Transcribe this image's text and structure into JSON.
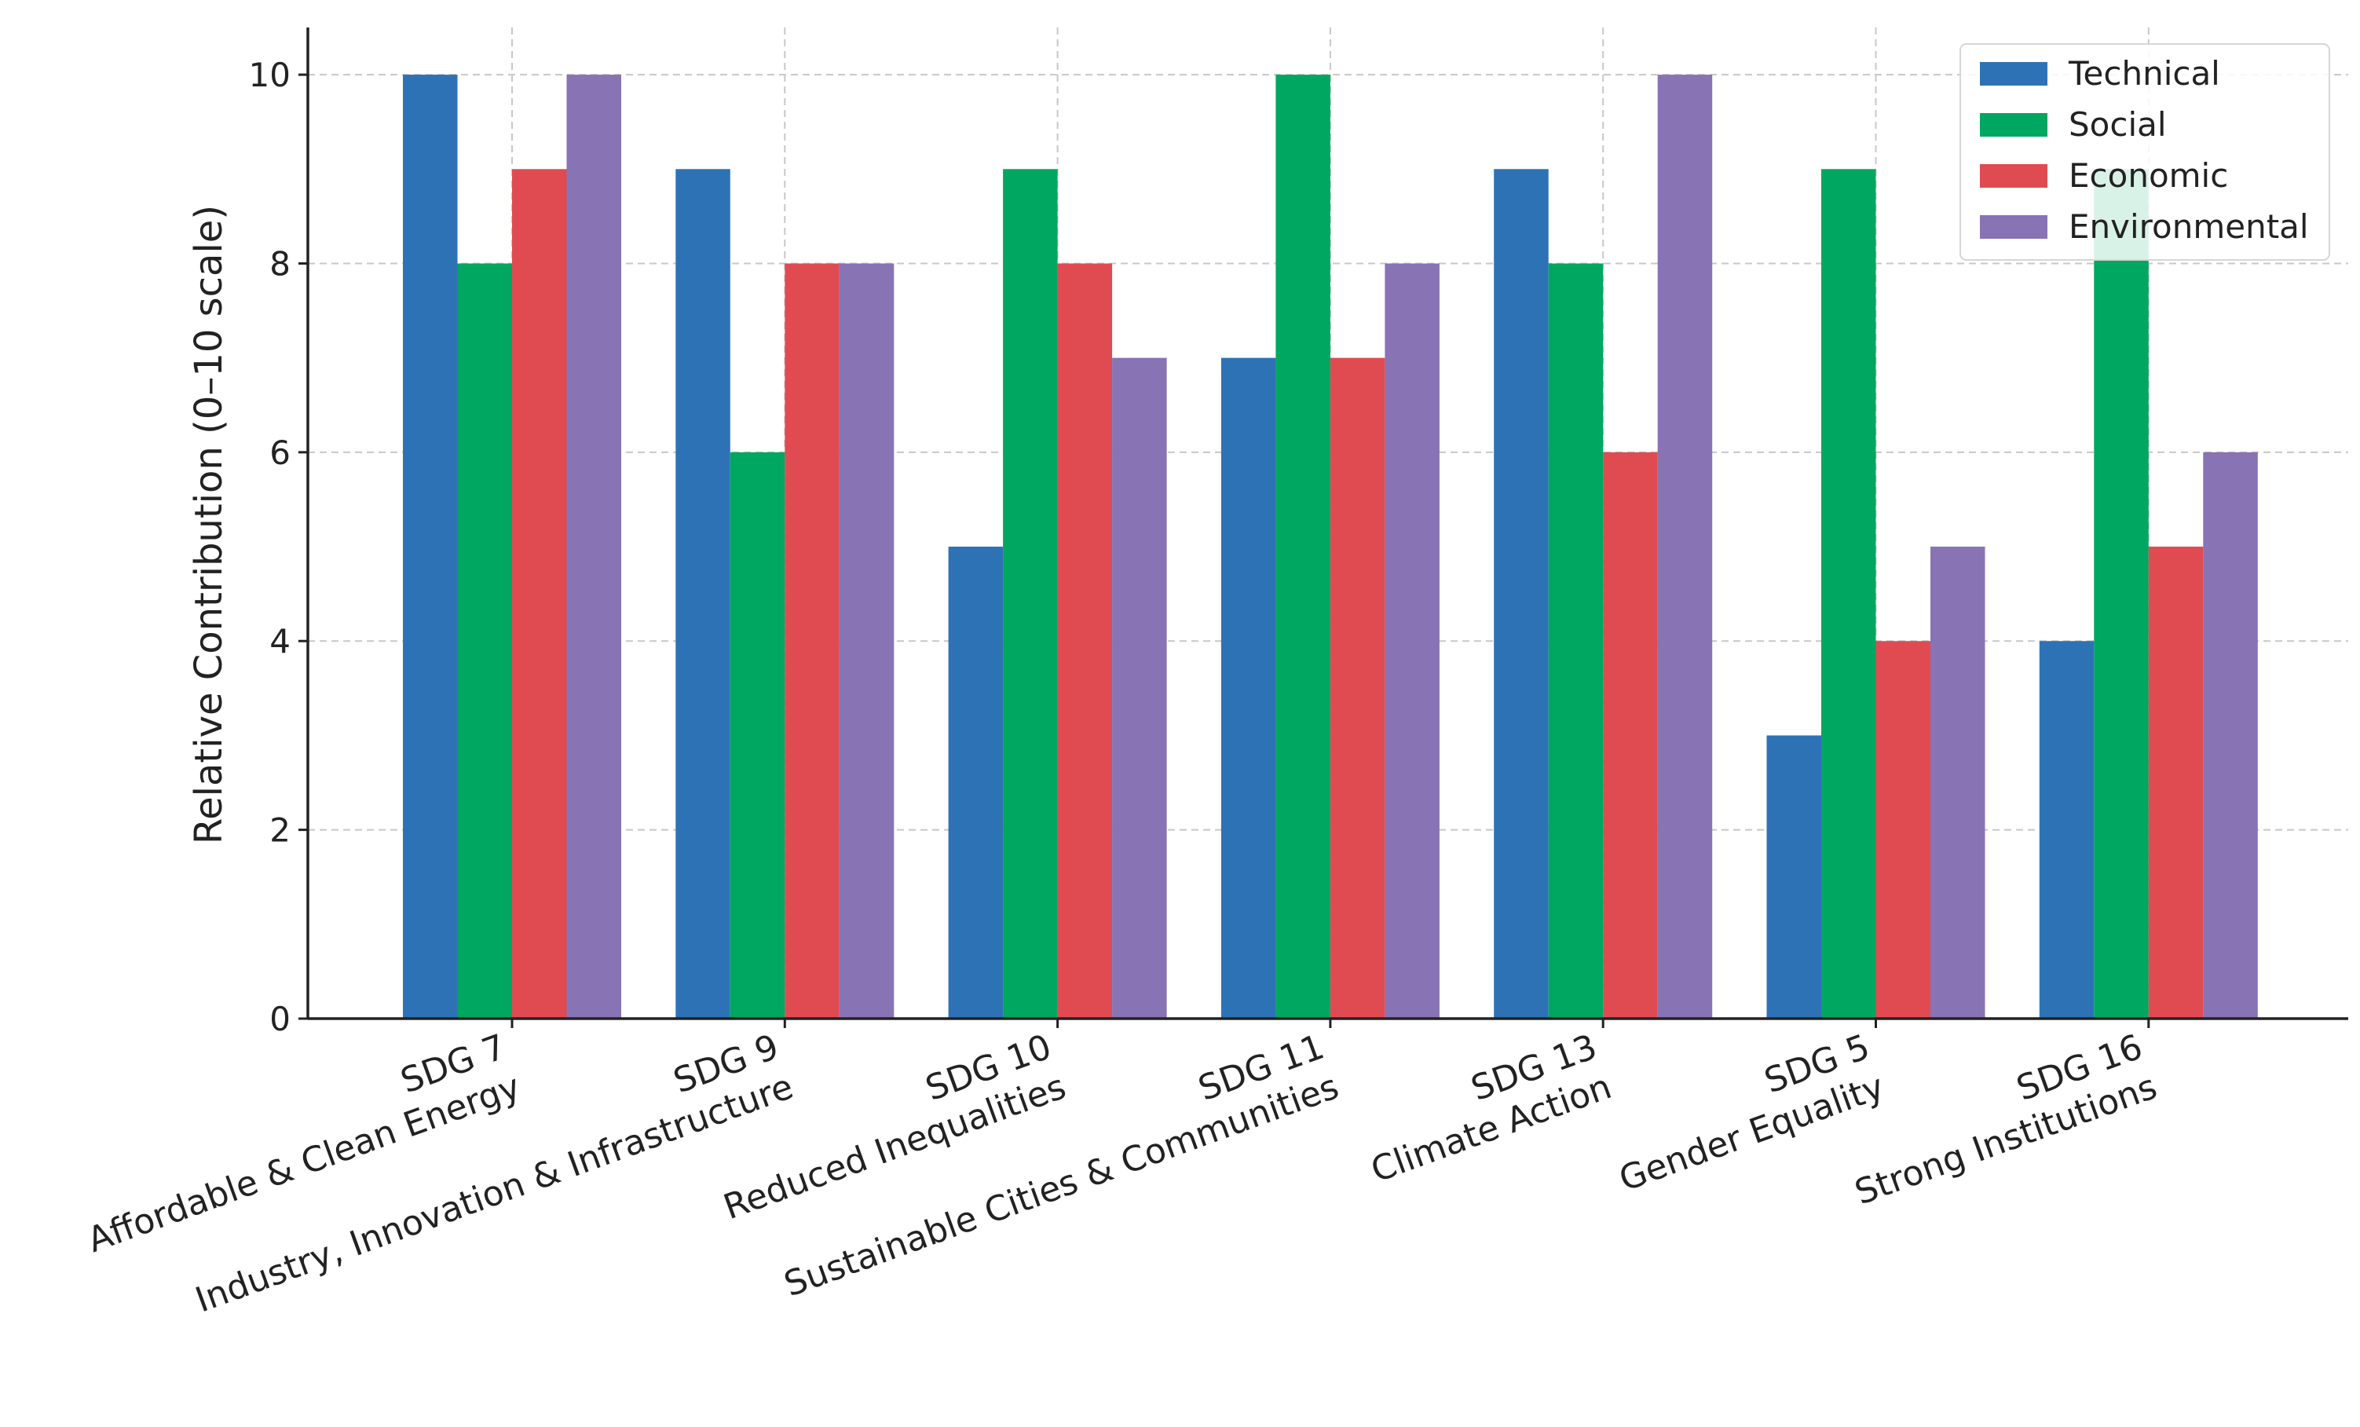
{
  "chart_data": {
    "type": "bar",
    "ylabel": "Relative Contribution (0–10 scale)",
    "xlabel": "",
    "title": "",
    "ylim": [
      0,
      10.5
    ],
    "yticks": [
      0,
      2,
      4,
      6,
      8,
      10
    ],
    "grid": true,
    "legend_position": "top-right",
    "categories": [
      {
        "line1": "SDG 7",
        "line2": "Affordable & Clean Energy"
      },
      {
        "line1": "SDG 9",
        "line2": "Industry, Innovation & Infrastructure"
      },
      {
        "line1": "SDG 10",
        "line2": "Reduced Inequalities"
      },
      {
        "line1": "SDG 11",
        "line2": "Sustainable Cities & Communities"
      },
      {
        "line1": "SDG 13",
        "line2": "Climate Action"
      },
      {
        "line1": "SDG 5",
        "line2": "Gender Equality"
      },
      {
        "line1": "SDG 16",
        "line2": "Strong Institutions"
      }
    ],
    "series": [
      {
        "name": "Technical",
        "color": "#2e72b6",
        "values": [
          10,
          9,
          5,
          7,
          9,
          3,
          4
        ]
      },
      {
        "name": "Social",
        "color": "#00a760",
        "values": [
          8,
          6,
          9,
          10,
          8,
          9,
          9
        ]
      },
      {
        "name": "Economic",
        "color": "#e04b52",
        "values": [
          9,
          8,
          8,
          7,
          6,
          4,
          5
        ]
      },
      {
        "name": "Environmental",
        "color": "#8873b4",
        "values": [
          10,
          8,
          7,
          8,
          10,
          5,
          6
        ]
      }
    ]
  }
}
